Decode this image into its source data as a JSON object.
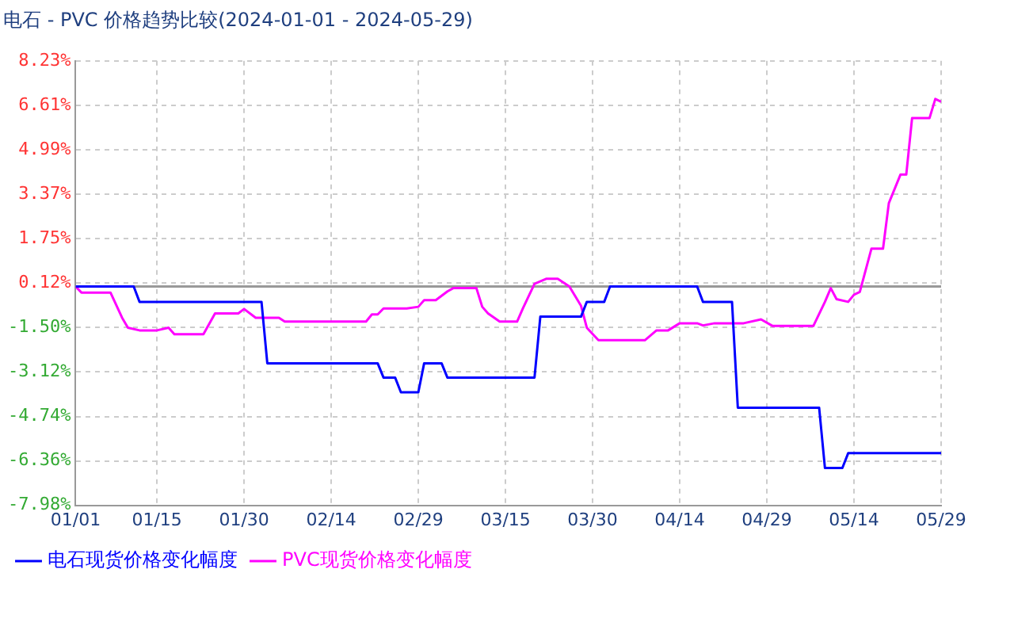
{
  "chart_data": {
    "type": "line",
    "title": "电石 - PVC 价格趋势比较(2024-01-01 - 2024-05-29)",
    "xlim": [
      "2024-01-01",
      "2024-05-29"
    ],
    "xticks": [
      {
        "value": "2024-01-01",
        "label": "01/01"
      },
      {
        "value": "2024-01-15",
        "label": "01/15"
      },
      {
        "value": "2024-01-30",
        "label": "01/30"
      },
      {
        "value": "2024-02-14",
        "label": "02/14"
      },
      {
        "value": "2024-02-29",
        "label": "02/29"
      },
      {
        "value": "2024-03-15",
        "label": "03/15"
      },
      {
        "value": "2024-03-30",
        "label": "03/30"
      },
      {
        "value": "2024-04-14",
        "label": "04/14"
      },
      {
        "value": "2024-04-29",
        "label": "04/29"
      },
      {
        "value": "2024-05-14",
        "label": "05/14"
      },
      {
        "value": "2024-05-29",
        "label": "05/29"
      }
    ],
    "ylim": [
      -7.98,
      8.23
    ],
    "yticks": [
      {
        "value": 8.23,
        "label": "8.23%"
      },
      {
        "value": 6.61,
        "label": "6.61%"
      },
      {
        "value": 4.99,
        "label": "4.99%"
      },
      {
        "value": 3.37,
        "label": "3.37%"
      },
      {
        "value": 1.75,
        "label": "1.75%"
      },
      {
        "value": 0.12,
        "label": "0.12%"
      },
      {
        "value": -1.5,
        "label": "-1.50%"
      },
      {
        "value": -3.12,
        "label": "-3.12%"
      },
      {
        "value": -4.74,
        "label": "-4.74%"
      },
      {
        "value": -6.36,
        "label": "-6.36%"
      },
      {
        "value": -7.98,
        "label": "-7.98%"
      }
    ],
    "grid": true,
    "legend": "bottom",
    "marker": "none",
    "line_style": "solid",
    "ref_lines": [
      {
        "axis": "y",
        "value": 0,
        "color": "#999999"
      }
    ],
    "series": [
      {
        "name": "电石现货价格变化幅度",
        "color": "#0000ff",
        "x": [
          "2024-01-01",
          "2024-01-11",
          "2024-01-12",
          "2024-02-02",
          "2024-02-03",
          "2024-02-22",
          "2024-02-23",
          "2024-02-25",
          "2024-02-26",
          "2024-02-29",
          "2024-03-01",
          "2024-03-04",
          "2024-03-05",
          "2024-03-20",
          "2024-03-21",
          "2024-03-28",
          "2024-03-29",
          "2024-04-01",
          "2024-04-02",
          "2024-04-17",
          "2024-04-18",
          "2024-04-23",
          "2024-04-24",
          "2024-05-08",
          "2024-05-09",
          "2024-05-12",
          "2024-05-13",
          "2024-05-29"
        ],
        "values": [
          0,
          0,
          -0.56,
          -0.56,
          -2.8,
          -2.8,
          -3.32,
          -3.32,
          -3.86,
          -3.86,
          -2.8,
          -2.8,
          -3.32,
          -3.32,
          -1.1,
          -1.1,
          -0.56,
          -0.56,
          0,
          0,
          -0.56,
          -0.56,
          -4.42,
          -4.42,
          -6.62,
          -6.62,
          -6.08,
          -6.08
        ]
      },
      {
        "name": "PVC现货价格变化幅度",
        "color": "#ff00ff",
        "x": [
          "2024-01-01",
          "2024-01-02",
          "2024-01-07",
          "2024-01-09",
          "2024-01-10",
          "2024-01-12",
          "2024-01-15",
          "2024-01-17",
          "2024-01-18",
          "2024-01-23",
          "2024-01-25",
          "2024-01-29",
          "2024-01-30",
          "2024-02-01",
          "2024-02-05",
          "2024-02-06",
          "2024-02-20",
          "2024-02-21",
          "2024-02-22",
          "2024-02-23",
          "2024-02-27",
          "2024-02-29",
          "2024-03-01",
          "2024-03-03",
          "2024-03-05",
          "2024-03-06",
          "2024-03-10",
          "2024-03-11",
          "2024-03-12",
          "2024-03-14",
          "2024-03-17",
          "2024-03-18",
          "2024-03-20",
          "2024-03-22",
          "2024-03-24",
          "2024-03-26",
          "2024-03-28",
          "2024-03-29",
          "2024-03-31",
          "2024-04-08",
          "2024-04-10",
          "2024-04-12",
          "2024-04-14",
          "2024-04-17",
          "2024-04-18",
          "2024-04-20",
          "2024-04-25",
          "2024-04-28",
          "2024-04-30",
          "2024-05-07",
          "2024-05-09",
          "2024-05-10",
          "2024-05-11",
          "2024-05-13",
          "2024-05-14",
          "2024-05-15",
          "2024-05-17",
          "2024-05-19",
          "2024-05-20",
          "2024-05-22",
          "2024-05-23",
          "2024-05-24",
          "2024-05-27",
          "2024-05-28",
          "2024-05-29"
        ],
        "values": [
          0,
          -0.22,
          -0.22,
          -1.14,
          -1.5,
          -1.6,
          -1.6,
          -1.5,
          -1.74,
          -1.74,
          -0.98,
          -0.98,
          -0.82,
          -1.14,
          -1.14,
          -1.28,
          -1.28,
          -1.02,
          -1.02,
          -0.8,
          -0.8,
          -0.74,
          -0.5,
          -0.5,
          -0.18,
          -0.06,
          -0.06,
          -0.74,
          -0.98,
          -1.28,
          -1.28,
          -0.8,
          0.1,
          0.28,
          0.28,
          0,
          -0.7,
          -1.5,
          -1.96,
          -1.96,
          -1.6,
          -1.6,
          -1.34,
          -1.34,
          -1.42,
          -1.34,
          -1.34,
          -1.2,
          -1.44,
          -1.44,
          -0.56,
          -0.06,
          -0.46,
          -0.56,
          -0.3,
          -0.2,
          1.38,
          1.38,
          3.04,
          4.08,
          4.08,
          6.14,
          6.14,
          6.84,
          6.74
        ]
      }
    ]
  }
}
